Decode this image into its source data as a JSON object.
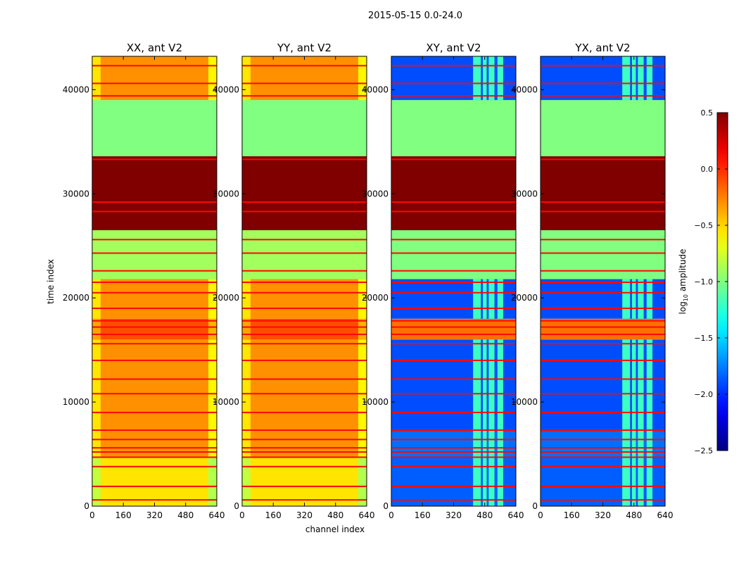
{
  "chart_data": {
    "type": "heatmap",
    "title": "2015-05-15 0.0-24.0",
    "xlabel": "channel index",
    "ylabel": "time index",
    "xlim": [
      0,
      640
    ],
    "ylim": [
      0,
      43200
    ],
    "xticks": [
      0,
      160,
      320,
      480,
      640
    ],
    "yticks": [
      0,
      10000,
      20000,
      30000,
      40000
    ],
    "colormap": "jet",
    "colorbar": {
      "label_main": "log",
      "label_sub": "10",
      "label_rest": " amplitude",
      "range": [
        -2.5,
        0.5
      ],
      "ticks": [
        0.5,
        0.0,
        -0.5,
        -1.0,
        -1.5,
        -2.0,
        -2.5
      ],
      "tick_labels": [
        "0.5",
        "0.0",
        "−0.5",
        "−1.0",
        "−1.5",
        "−2.0",
        "−2.5"
      ]
    },
    "panels": [
      {
        "title": "XX, ant V2",
        "kind": "parallel"
      },
      {
        "title": "YY, ant V2",
        "kind": "parallel"
      },
      {
        "title": "XY, ant V2",
        "kind": "cross"
      },
      {
        "title": "YX, ant V2",
        "kind": "cross"
      }
    ],
    "time_bands": [
      {
        "start": 0,
        "end": 4700,
        "parallel": -0.55,
        "cross": -1.85
      },
      {
        "start": 4700,
        "end": 7200,
        "parallel": -0.3,
        "cross": -1.8
      },
      {
        "start": 7200,
        "end": 16000,
        "parallel": -0.3,
        "cross": -1.9
      },
      {
        "start": 16000,
        "end": 18000,
        "parallel": -0.1,
        "cross": -0.2
      },
      {
        "start": 18000,
        "end": 21800,
        "parallel": -0.3,
        "cross": -1.9
      },
      {
        "start": 21800,
        "end": 26500,
        "parallel": -0.9,
        "cross": -1.0
      },
      {
        "start": 26500,
        "end": 33600,
        "parallel": 0.5,
        "cross": 0.5
      },
      {
        "start": 33600,
        "end": 39000,
        "parallel": -1.0,
        "cross": -1.0
      },
      {
        "start": 39000,
        "end": 43200,
        "parallel": -0.3,
        "cross": -1.9
      }
    ],
    "cross_bright_channels": [
      [
        420,
        460
      ],
      [
        470,
        490
      ],
      [
        500,
        530
      ],
      [
        545,
        575
      ]
    ],
    "cross_bright_value": -1.2,
    "flag_lines": [
      600,
      1900,
      3800,
      4700,
      5200,
      5600,
      6400,
      7300,
      9000,
      10800,
      12200,
      14000,
      15600,
      16500,
      17200,
      17800,
      19000,
      20500,
      21500,
      22600,
      24300,
      25600,
      28300,
      29200,
      33300,
      39400,
      40600,
      42300
    ],
    "flag_value": 0.1
  }
}
